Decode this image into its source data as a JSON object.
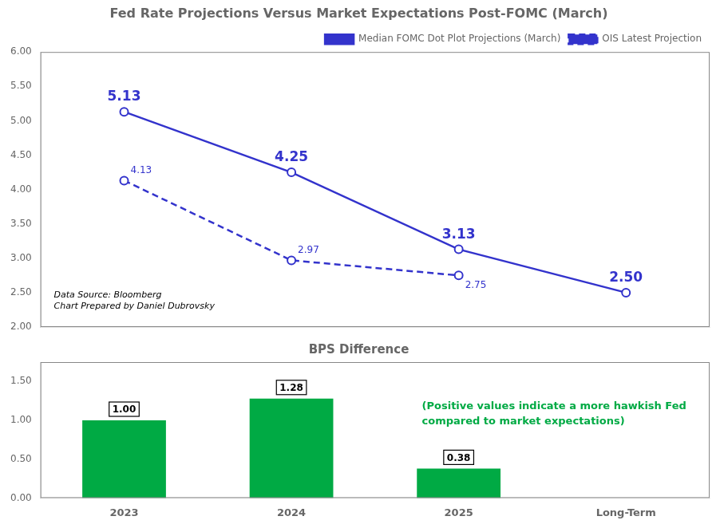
{
  "chart_data": [
    {
      "type": "line",
      "title": "Fed Rate Projections Versus Market Expectations Post-FOMC (March)",
      "categories": [
        "2023",
        "2024",
        "2025",
        "Long-Term"
      ],
      "series": [
        {
          "name": "Median FOMC Dot Plot Projections (March)",
          "color": "#3333cc",
          "values": [
            5.13,
            4.25,
            3.13,
            2.5
          ],
          "value_labels": [
            "5.13",
            "4.25",
            "3.13",
            "2.50"
          ],
          "line_style": "solid",
          "marker": "circle"
        },
        {
          "name": "OIS Latest Projection",
          "color": "#3333cc",
          "values": [
            4.13,
            2.97,
            2.75,
            null
          ],
          "value_labels": [
            "4.13",
            "2.97",
            "2.75",
            null
          ],
          "line_style": "dashed",
          "marker": "circle"
        }
      ],
      "ylim": [
        2.0,
        6.0
      ],
      "yticks": [
        {
          "value": 2.0,
          "label": "2.00"
        },
        {
          "value": 2.5,
          "label": "2.50"
        },
        {
          "value": 3.0,
          "label": "3.00"
        },
        {
          "value": 3.5,
          "label": "3.50"
        },
        {
          "value": 4.0,
          "label": "4.00"
        },
        {
          "value": 4.5,
          "label": "4.50"
        },
        {
          "value": 5.0,
          "label": "5.00"
        },
        {
          "value": 5.5,
          "label": "5.50"
        },
        {
          "value": 6.0,
          "label": "6.00"
        }
      ],
      "grid": false,
      "legend": "upper right",
      "data_labels": true,
      "tick_labels": "y",
      "annotation": "Data Source: Bloomberg\nChart Prepared by Daniel Dubrovsky"
    },
    {
      "type": "bar",
      "title": "BPS Difference",
      "categories": [
        "2023",
        "2024",
        "2025",
        "Long-Term"
      ],
      "values": [
        1.0,
        1.28,
        0.38,
        0
      ],
      "value_labels": [
        "1.00",
        "1.28",
        "0.38",
        null
      ],
      "color": "#00aa44",
      "ylim": [
        0.0,
        1.75
      ],
      "yticks": [
        {
          "value": 0.0,
          "label": "0.00"
        },
        {
          "value": 0.5,
          "label": "0.50"
        },
        {
          "value": 1.0,
          "label": "1.00"
        },
        {
          "value": 1.5,
          "label": "1.50"
        }
      ],
      "grid": false,
      "data_labels": true,
      "annotation": "(Positive values indicate a more hawkish Fed\ncompared to market expectations)"
    }
  ]
}
